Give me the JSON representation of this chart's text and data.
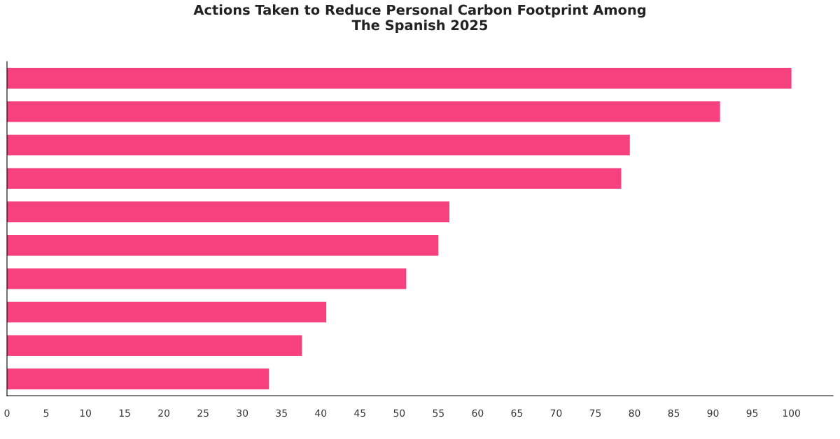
{
  "chart_data": {
    "type": "bar",
    "orientation": "horizontal",
    "title": "Actions Taken to Reduce Personal Carbon Footprint Among\nThe Spanish 2025",
    "categories": [
      null,
      null,
      null,
      null,
      null,
      null,
      null,
      null,
      null,
      null
    ],
    "values": [
      100,
      90.9,
      79.4,
      78.3,
      56.4,
      55.0,
      50.9,
      40.7,
      37.6,
      33.4
    ],
    "color": "#f7407e",
    "xlim": [
      0,
      105.3
    ],
    "xticks": [
      0,
      5,
      10,
      15,
      20,
      25,
      30,
      35,
      40,
      45,
      50,
      55,
      60,
      65,
      70,
      75,
      80,
      85,
      90,
      95,
      100
    ],
    "grid": false,
    "legend": false
  }
}
